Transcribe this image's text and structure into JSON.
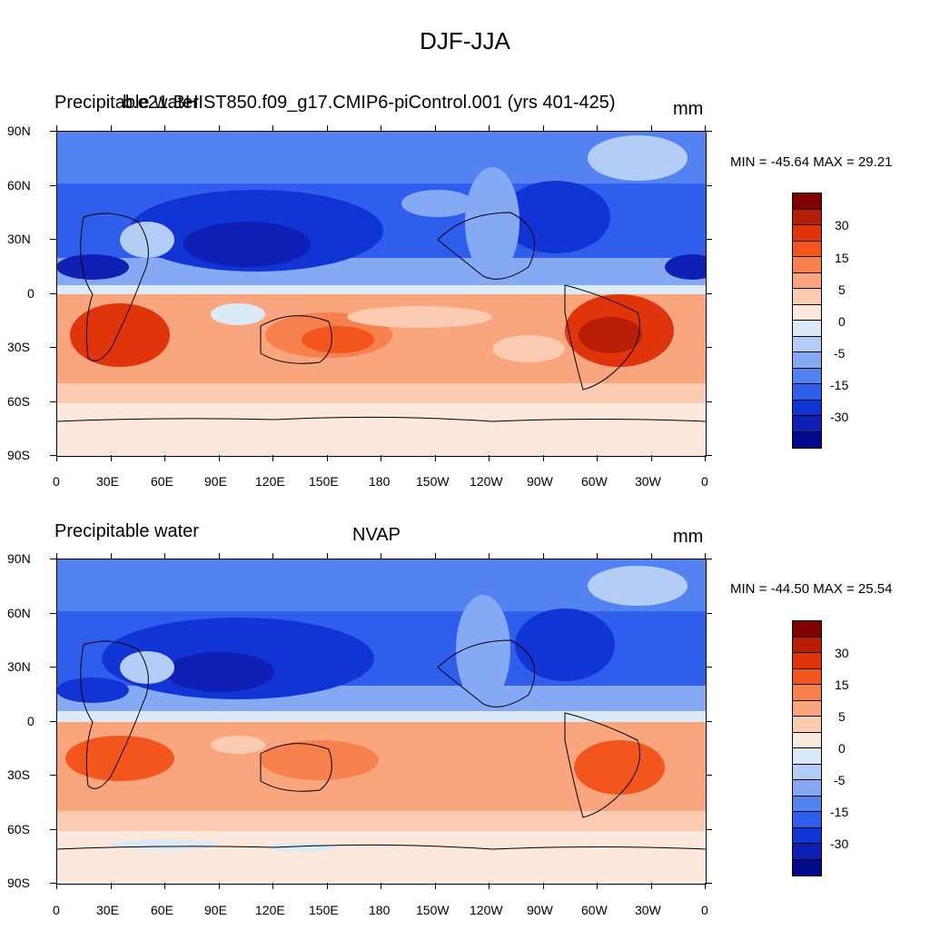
{
  "title": "DJF-JJA",
  "panels": [
    {
      "left_label": "Precipitable water",
      "center_label": "b.e21.BHIST850.f09_g17.CMIP6-piControl.001 (yrs 401-425)",
      "right_label": "mm",
      "min_max": "MIN = -45.64 MAX =  29.21"
    },
    {
      "left_label": "Precipitable water",
      "center_label": "NVAP",
      "right_label": "mm",
      "min_max": "MIN = -44.50 MAX =  25.54"
    }
  ],
  "lat_labels": [
    "90N",
    "60N",
    "30N",
    "0",
    "30S",
    "60S",
    "90S"
  ],
  "lon_labels": [
    "0",
    "30E",
    "60E",
    "90E",
    "120E",
    "150E",
    "180",
    "150W",
    "120W",
    "90W",
    "60W",
    "30W",
    "0"
  ],
  "colorbar": {
    "labels": [
      "30",
      "15",
      "5",
      "0",
      "-5",
      "-15",
      "-30"
    ],
    "colors": [
      "#800000",
      "#B81D06",
      "#E0350A",
      "#F3561C",
      "#F6814C",
      "#F9A57E",
      "#FBCBB2",
      "#FDE9DC",
      "#DCEAF8",
      "#B3CDF7",
      "#86A9F4",
      "#5383F1",
      "#2F5EEC",
      "#1135D5",
      "#0F20B5",
      "#000A8B"
    ]
  },
  "chart_data": {
    "type": "heatmap",
    "description_units": "mm",
    "panels": [
      {
        "name": "b.e21.BHIST850.f09_g17.CMIP6-piControl.001 (yrs 401-425)",
        "min": -45.64,
        "max": 29.21
      },
      {
        "name": "NVAP",
        "min": -44.5,
        "max": 25.54
      }
    ],
    "xlim": [
      0,
      360
    ],
    "ylim": [
      -90,
      90
    ],
    "contour_levels": [
      -35,
      -30,
      -25,
      -20,
      -15,
      -10,
      -5,
      -2.5,
      0,
      2.5,
      5,
      10,
      15,
      20,
      25,
      30,
      35
    ]
  }
}
